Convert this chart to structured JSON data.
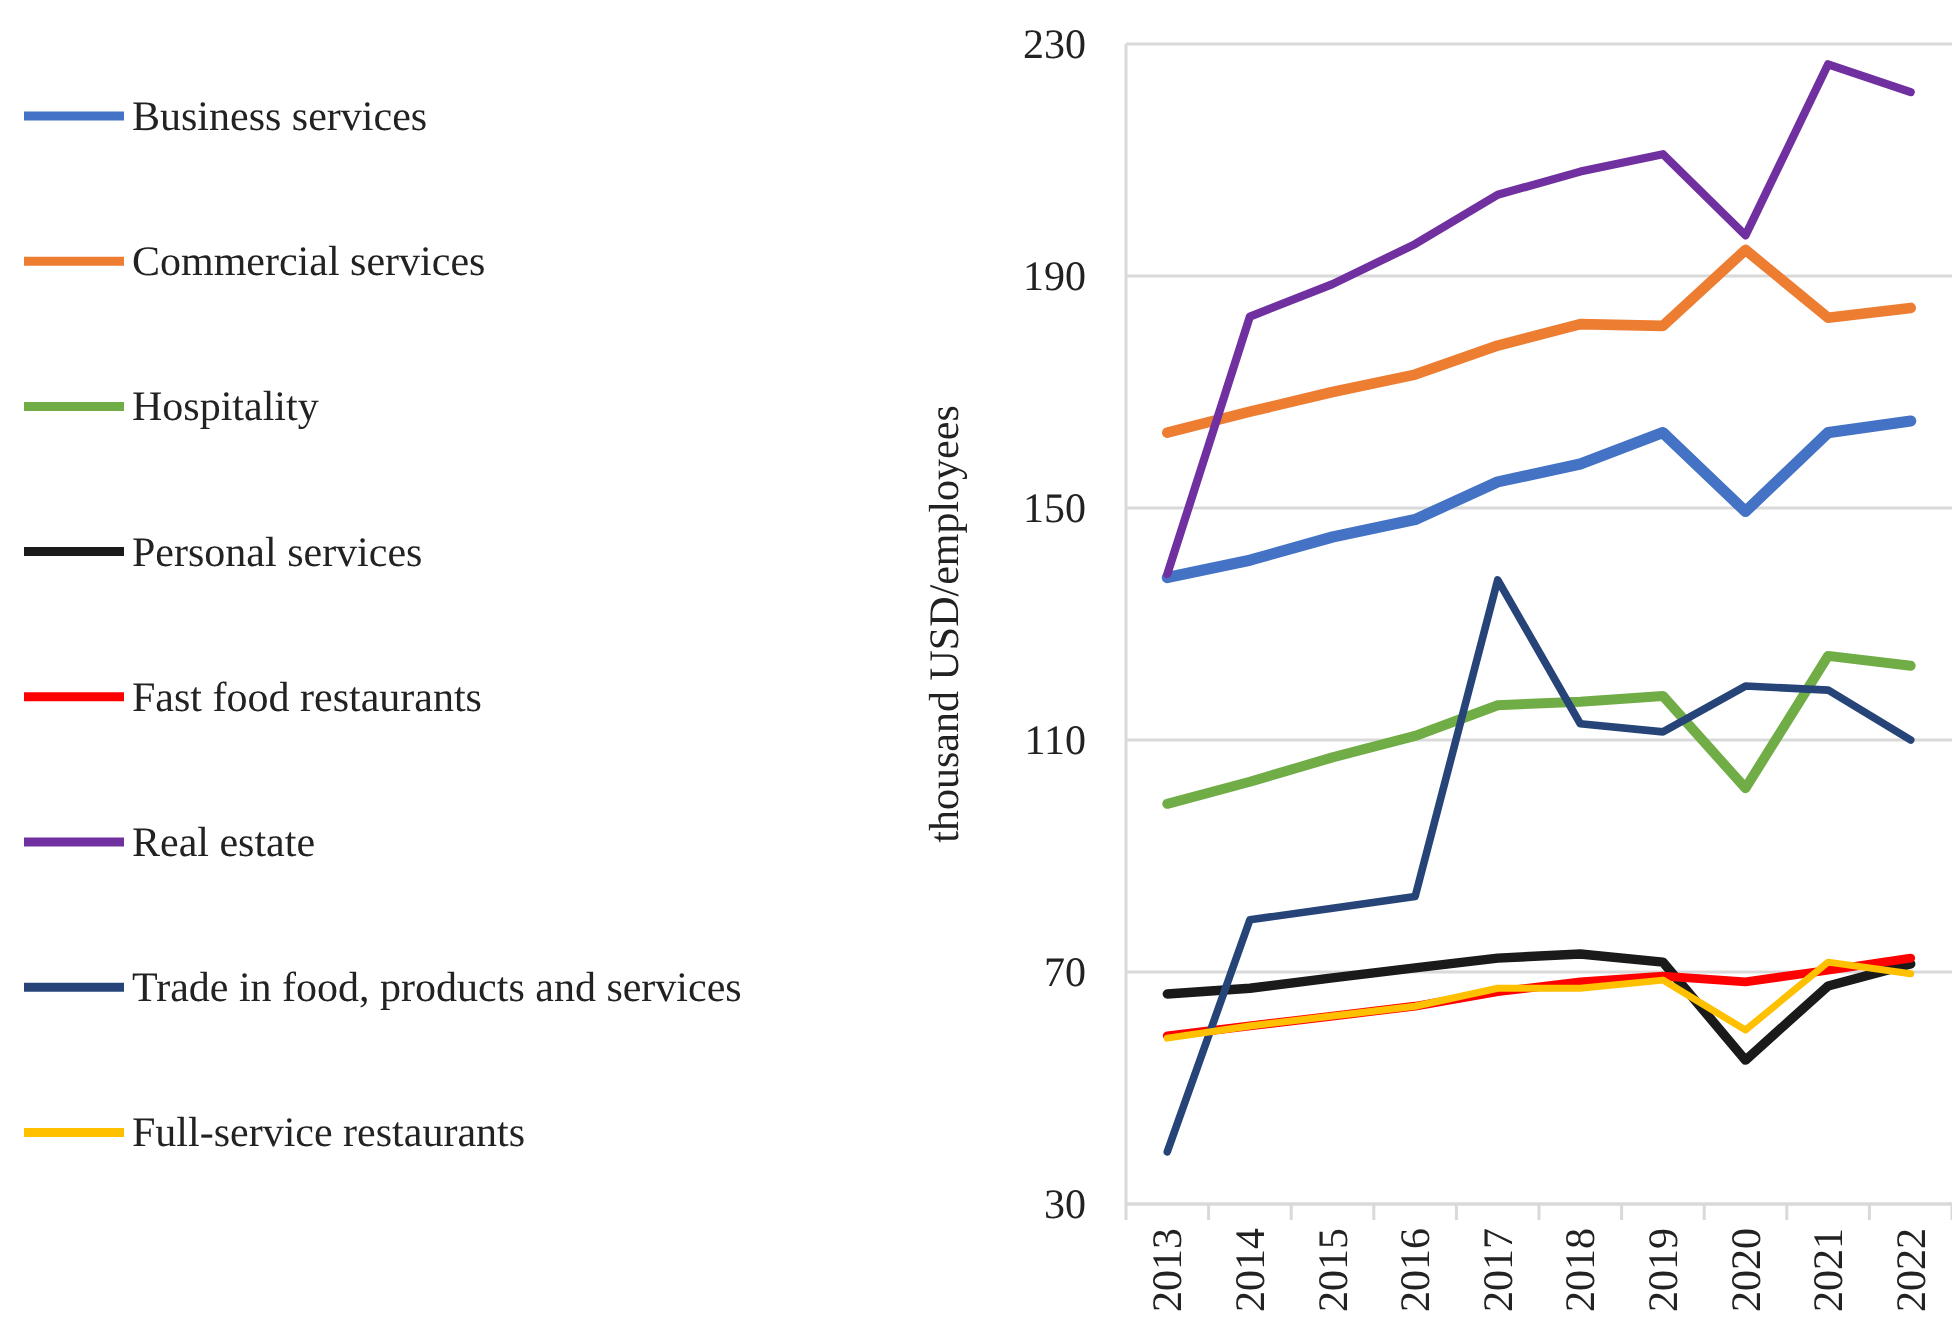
{
  "chart_data": {
    "type": "line",
    "ylabel": "thousand USD/employees",
    "categories": [
      "2013",
      "2014",
      "2015",
      "2016",
      "2017",
      "2018",
      "2019",
      "2020",
      "2021",
      "2022"
    ],
    "ylim": [
      30,
      230
    ],
    "yticks": [
      30,
      70,
      110,
      150,
      190,
      230
    ],
    "grid": "y",
    "legend": "left",
    "marker": "none",
    "line_style": "solid",
    "series": [
      {
        "name": "Business services",
        "color": "#4472c4",
        "values": [
          138,
          141,
          145,
          148,
          154.5,
          157.6,
          163,
          149.4,
          163,
          165
        ]
      },
      {
        "name": "Commercial services",
        "color": "#ed7d31",
        "values": [
          163,
          166.6,
          170,
          173,
          178,
          181.7,
          181.4,
          194.5,
          182.8,
          184.5
        ]
      },
      {
        "name": "Hospitality",
        "color": "#70ad47",
        "values": [
          99,
          102.8,
          107,
          110.7,
          116,
          116.6,
          117.6,
          101.7,
          124.5,
          122.8
        ]
      },
      {
        "name": "Personal services",
        "color": "#1a1a1a",
        "values": [
          66.2,
          67.2,
          69,
          70.7,
          72.4,
          73.1,
          71.7,
          54.8,
          67.6,
          71.4
        ]
      },
      {
        "name": "Fast food restaurants",
        "color": "#ff0000",
        "values": [
          59,
          60.7,
          62.4,
          64.1,
          66.6,
          68.3,
          69.3,
          68.3,
          70.3,
          72.4
        ]
      },
      {
        "name": "Real estate",
        "color": "#7030a0",
        "values": [
          138.6,
          183,
          188.6,
          195.5,
          204,
          208,
          211,
          197,
          226.5,
          221.7
        ]
      },
      {
        "name": "Trade in food, products and services",
        "color": "#264478",
        "values": [
          39,
          79,
          81,
          83,
          137.6,
          112.8,
          111.4,
          119.3,
          118.6,
          110
        ]
      },
      {
        "name": "Full-service restaurants",
        "color": "#ffc000",
        "values": [
          58.6,
          60.7,
          62.4,
          64.1,
          67.2,
          67.2,
          68.6,
          60,
          71.7,
          69.7
        ]
      }
    ]
  }
}
